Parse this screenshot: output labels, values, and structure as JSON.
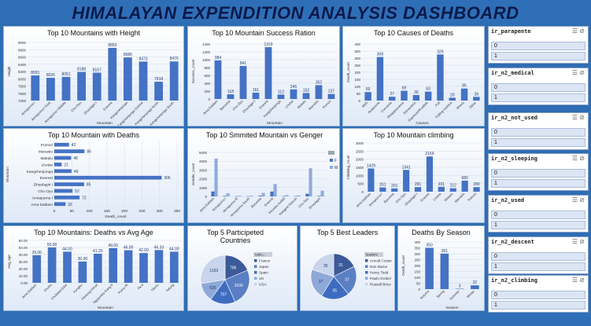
{
  "dashboard": {
    "title": "HIMALAYAN  EXPENDITION  ANALYSIS DASHBOARD"
  },
  "colors": {
    "bar": "#4472c4",
    "bar_light": "#8faadc",
    "background": "#2e6db4",
    "pie": [
      "#3c5a9a",
      "#5a7fc4",
      "#3f6cc0",
      "#8ea8d8",
      "#c9d5ec"
    ]
  },
  "chart_data": [
    {
      "id": "height",
      "type": "bar",
      "title": "Top 10 Mountains with Height",
      "xlabel": "Mountain",
      "ylabel": "Height",
      "ylim": [
        7400,
        9000
      ],
      "yticks": [
        "9000",
        "8800",
        "8600",
        "8400",
        "8200",
        "8000",
        "7800",
        "7600",
        "7400"
      ],
      "categories": [
        "Annapurna I",
        "Annapurna I East",
        "Annapurna I Middle",
        "Cho Oyu",
        "Dhaulagiri I",
        "Everest",
        "Kangchenjunga",
        "Kangchenjunga Central",
        "Kangchenjunga North",
        "Kangchenjunga South"
      ],
      "values": [
        8091,
        8026,
        8051,
        8188,
        8167,
        8850,
        8586,
        8473,
        7918,
        8476
      ],
      "labels": [
        "8091",
        "8026",
        "8051",
        "8188",
        "8167",
        "8850",
        "8586",
        "8473",
        "7918",
        "8476"
      ]
    },
    {
      "id": "success",
      "type": "bar",
      "title": "Top 10 Mountain Success Ration",
      "xlabel": "Mountain",
      "ylabel": "Success_count",
      "ylim": [
        0,
        1400
      ],
      "yticks": [
        "1400",
        "1200",
        "1000",
        "800",
        "600",
        "400",
        "200",
        "0"
      ],
      "categories": [
        "Ama Dablam",
        "Baruntse",
        "Cho Oyu",
        "Dhaulagiri I",
        "Everest",
        "Kangchenjunga",
        "Lhotse",
        "Makalu",
        "Manaslu",
        "Pumori"
      ],
      "values": [
        984,
        118,
        841,
        161,
        1319,
        112,
        245,
        152,
        352,
        127
      ],
      "labels": [
        "984",
        "118",
        "841",
        "161",
        "1319",
        "112",
        "245",
        "152",
        "352",
        "127"
      ]
    },
    {
      "id": "causes",
      "type": "bar",
      "title": "Top 10 Causes of Deaths",
      "xlabel": "Causes",
      "ylabel": "Death_count",
      "ylim": [
        0,
        400
      ],
      "yticks": [
        "400",
        "350",
        "300",
        "250",
        "200",
        "150",
        "100",
        "50",
        "0"
      ],
      "categories": [
        "AMS",
        "Avalanche",
        "Crevasse",
        "Disappearance",
        "Exhaustion",
        "Exposure/frostbite",
        "Fall",
        "Falling rock/ice",
        "Illness",
        "Other"
      ],
      "values": [
        60,
        308,
        27,
        69,
        39,
        63,
        326,
        20,
        85,
        26
      ],
      "labels": [
        "60",
        "308",
        "27",
        "69",
        "39",
        "63",
        "326",
        "20",
        "85",
        "26"
      ]
    },
    {
      "id": "deaths",
      "type": "hbar",
      "title": "Top 10 Mountain with Deaths",
      "xlabel": "Death_count",
      "ylabel": "Mountain",
      "xlim": [
        0,
        350
      ],
      "xticks": [
        "0",
        "50",
        "100",
        "150",
        "200",
        "250",
        "300",
        "350"
      ],
      "categories": [
        "Pumori",
        "Manaslu",
        "Makalu",
        "Lhotse",
        "Kangchenjunga",
        "Everest",
        "Dhaulagiri I",
        "Cho Oyu",
        "Annapurna I",
        "Ama Dablam"
      ],
      "values": [
        42,
        86,
        48,
        21,
        49,
        306,
        85,
        52,
        72,
        32
      ],
      "labels": [
        "42",
        "86",
        "48",
        "21",
        "49",
        "306",
        "85",
        "52",
        "72",
        "32"
      ]
    },
    {
      "id": "gender",
      "type": "bar",
      "title": "Top 10 Smmited Mountain vs Genger",
      "xlabel": "",
      "ylabel": "Gender_count",
      "ylim": [
        0,
        5000
      ],
      "yticks": [
        "5000",
        "4000",
        "3000",
        "2000",
        "1000",
        "0"
      ],
      "categories": [
        "Ama Dablam",
        "Annapurna I",
        "Annapurna III",
        "Annapurna South",
        "Baruntse",
        "Everest",
        "Khumbu Icefall",
        "Nangpai Gosum",
        "Cho Oyu",
        "Dhaulagiri"
      ],
      "series": [
        {
          "name": "F",
          "values": [
            560,
            60,
            20,
            15,
            80,
            550,
            30,
            25,
            300,
            60
          ]
        },
        {
          "name": "M",
          "values": [
            4300,
            340,
            90,
            80,
            400,
            1400,
            150,
            120,
            3200,
            640
          ]
        }
      ],
      "legend": "right"
    },
    {
      "id": "climbing",
      "type": "bar",
      "title": "Top 10 Mountain climbing",
      "xlabel": "",
      "ylabel": "Climbing_count",
      "ylim": [
        0,
        3000
      ],
      "yticks": [
        "3000",
        "2500",
        "2000",
        "1500",
        "1000",
        "500",
        "0"
      ],
      "categories": [
        "Ama Dablam",
        "Annapurna I",
        "Baruntse",
        "Cho Oyu",
        "Dhaulagiri I",
        "Everest",
        "Lhotse",
        "Makalu",
        "Manaslu",
        "Pumori"
      ],
      "values": [
        1429,
        261,
        201,
        1341,
        281,
        2169,
        301,
        212,
        680,
        280
      ],
      "labels": [
        "1429",
        "261",
        "201",
        "1341",
        "281",
        "2169",
        "301",
        "212",
        "680",
        "280"
      ]
    },
    {
      "id": "age",
      "type": "bar",
      "title": "Top 10 Mountains: Deaths vs Avg Age",
      "xlabel": "Mountain",
      "ylabel": "Avg_age",
      "ylim": [
        0,
        60
      ],
      "yticks": [
        "60.00",
        "50.00",
        "40.00",
        "30.00",
        "20.00",
        "10.00",
        "0.00"
      ],
      "categories": [
        "Ama Dablam",
        "Chobo",
        "Cholatse/Jobo",
        "Hongku",
        "Himlung Himal",
        "Ngojumba Kang II",
        "Pumo Ri",
        "Pk 6",
        "Tilicho",
        "Yalung"
      ],
      "values": [
        39.06,
        50.0,
        44.0,
        30.0,
        41.2,
        49.0,
        46.0,
        42.09,
        46.33,
        44.0
      ],
      "labels": [
        "39.06",
        "50.00",
        "44.00",
        "30.00",
        "41.20",
        "49.00",
        "46.00",
        "42.09",
        "46.33",
        "44.00"
      ]
    },
    {
      "id": "countries",
      "type": "pie",
      "title": "Top 5 Participeted Countries",
      "legend_title": "natio...",
      "categories": [
        "France",
        "Japan",
        "Spain",
        "UK",
        "USA"
      ],
      "values": [
        786,
        1036,
        707,
        520,
        1163
      ],
      "labels": [
        "786",
        "1036",
        "707",
        "520",
        "1163"
      ]
    },
    {
      "id": "leaders",
      "type": "pie",
      "title": "Top 5 Best Leaders",
      "legend_title": "leaders",
      "categories": [
        "Arnold Coster",
        "Dan Mazur",
        "Henry Todd",
        "Paulo Grobel",
        "Russell Brice"
      ],
      "values": [
        31,
        37,
        35,
        37,
        35
      ],
      "labels": [
        "31",
        "37",
        "35",
        "37",
        "35"
      ]
    },
    {
      "id": "season",
      "type": "bar",
      "title": "Deaths By Season",
      "xlabel": "Season",
      "ylabel": "Death_count",
      "ylim": [
        0,
        400
      ],
      "yticks": [
        "400",
        "350",
        "300",
        "250",
        "200",
        "150",
        "100",
        "50",
        "0"
      ],
      "categories": [
        "Autumn",
        "Spring",
        "Summer",
        "Winter"
      ],
      "values": [
        350,
        301,
        3,
        32
      ],
      "labels": [
        "350",
        "301",
        "3",
        "32"
      ]
    }
  ],
  "slicers": [
    {
      "header": "ir_parapente",
      "items": [
        "0",
        "1"
      ]
    },
    {
      "header": "ir_n2_medical",
      "items": [
        "0",
        "1"
      ]
    },
    {
      "header": "ir_n2_not_used",
      "items": [
        "0",
        "1"
      ]
    },
    {
      "header": "ir_n2_sleeping",
      "items": [
        "0",
        "1"
      ]
    },
    {
      "header": "ir_n2_used",
      "items": [
        "0",
        "1"
      ]
    },
    {
      "header": "ir_n2_descent",
      "items": [
        "0",
        "1"
      ]
    },
    {
      "header": "ir_n2_climbing",
      "items": [
        "0",
        "1"
      ]
    }
  ]
}
